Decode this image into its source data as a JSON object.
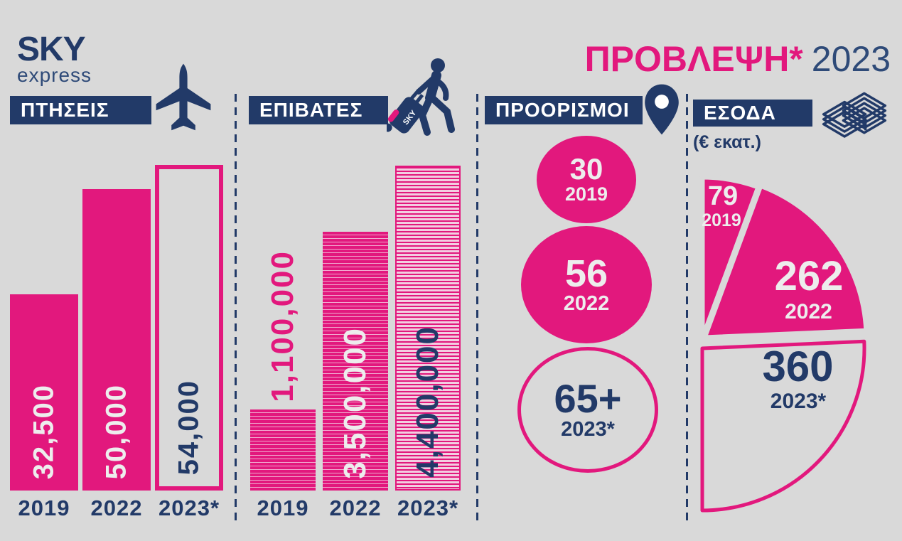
{
  "background": "#D9D9D9",
  "colors": {
    "magenta": "#E2187D",
    "navy": "#223A68",
    "bg": "#D9D9D9",
    "white": "#EDEDED"
  },
  "logo": {
    "sky": "SKY",
    "express": "express"
  },
  "title": {
    "forecast": "ΠΡΟΒΛΕΨΗ*",
    "year": "2023"
  },
  "sections": {
    "flights": {
      "header": "ΠΤΗΣΕΙΣ",
      "icon": "plane-icon"
    },
    "passengers": {
      "header": "ΕΠΙΒΑΤΕΣ",
      "icon": "passenger-luggage-icon",
      "luggage_label": "SKY"
    },
    "destinations": {
      "header": "ΠΡΟΟΡΙΣΜΟΙ",
      "icon": "location-pin-icon"
    },
    "revenue": {
      "header": "ΕΣΟΔΑ",
      "unit": "(€ εκατ.)",
      "icon": "banknotes-icon"
    }
  },
  "chart_data": [
    {
      "id": "flights",
      "type": "bar",
      "title": "ΠΤΗΣΕΙΣ",
      "categories": [
        "2019",
        "2022",
        "2023*"
      ],
      "values": [
        32500,
        50000,
        54000
      ],
      "labels": [
        "32,500",
        "50,000",
        "54,000"
      ],
      "styles": [
        "solid",
        "solid",
        "outline"
      ],
      "ylim": [
        0,
        54000
      ],
      "grid": false,
      "legend": "none"
    },
    {
      "id": "passengers",
      "type": "bar",
      "title": "ΕΠΙΒΑΤΕΣ",
      "categories": [
        "2019",
        "2022",
        "2023*"
      ],
      "values": [
        1100000,
        3500000,
        4400000
      ],
      "labels": [
        "1,100,000",
        "3,500,000",
        "4,400,000"
      ],
      "styles": [
        "striped",
        "striped",
        "striped-light"
      ],
      "ylim": [
        0,
        4400000
      ],
      "grid": false,
      "legend": "none"
    },
    {
      "id": "destinations",
      "type": "bubble",
      "title": "ΠΡΟΟΡΙΣΜΟΙ",
      "categories": [
        "2019",
        "2022",
        "2023*"
      ],
      "values": [
        30,
        56,
        65
      ],
      "labels": [
        "30",
        "56",
        "65+"
      ],
      "styles": [
        "solid",
        "solid",
        "outline"
      ]
    },
    {
      "id": "revenue",
      "type": "pie",
      "title": "ΕΣΟΔΑ (€ εκατ.)",
      "categories": [
        "2019",
        "2022",
        "2023*"
      ],
      "values": [
        79,
        262,
        360
      ],
      "labels": [
        "79",
        "262",
        "360"
      ],
      "styles": [
        "solid",
        "solid",
        "outline"
      ],
      "layout": "semicircle-right",
      "sweep_deg": 180
    }
  ]
}
